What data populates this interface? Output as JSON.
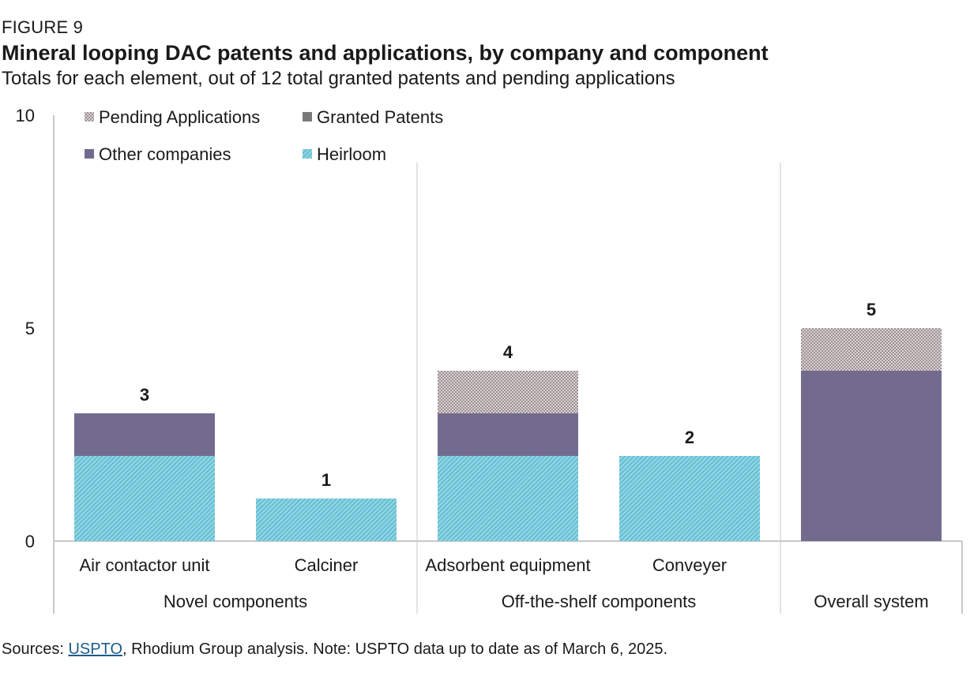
{
  "figure_label": "FIGURE 9",
  "title": "Mineral looping DAC patents and applications, by company and component",
  "subtitle": "Totals for each element, out of 12 total granted patents and pending applications",
  "footer": {
    "prefix": "Sources: ",
    "link_text": "USPTO",
    "suffix": ", Rhodium Group analysis. Note: USPTO data up to date as of March 6, 2025."
  },
  "colors": {
    "heirloom": "#45b0c8",
    "other_companies": "#736b8e",
    "granted_patents": "#7a7a7a",
    "pending_applications": "#a89c9f",
    "axis": "#c8c8c8"
  },
  "chart_data": {
    "type": "bar",
    "stacked": true,
    "categories": [
      "Air contactor unit",
      "Calciner",
      "Adsorbent equipment",
      "Conveyer",
      ""
    ],
    "groups": [
      {
        "label": "Novel components",
        "categories": [
          0,
          1
        ]
      },
      {
        "label": "Off-the-shelf components",
        "categories": [
          2,
          3
        ]
      },
      {
        "label": "Overall system",
        "categories": [
          4
        ]
      }
    ],
    "series": [
      {
        "name": "Heirloom",
        "values": [
          2,
          1,
          2,
          2,
          0
        ],
        "color_key": "heirloom",
        "pattern": "hatch"
      },
      {
        "name": "Other companies",
        "values": [
          1,
          0,
          1,
          0,
          4
        ],
        "color_key": "other_companies",
        "pattern": "solid"
      },
      {
        "name": "Granted Patents",
        "values": [
          0,
          0,
          0,
          0,
          0
        ],
        "color_key": "granted_patents",
        "pattern": "solid"
      },
      {
        "name": "Pending Applications",
        "values": [
          0,
          0,
          1,
          0,
          1
        ],
        "color_key": "pending_applications",
        "pattern": "dots"
      }
    ],
    "totals": [
      "3",
      "1",
      "4",
      "2",
      "5"
    ],
    "legend_order": [
      "Pending Applications",
      "Granted Patents",
      "Other companies",
      "Heirloom"
    ],
    "legend_position": "top-left",
    "y_ticks": [
      "0",
      "5",
      "10"
    ],
    "ylim": [
      0,
      10
    ],
    "xlabel": "",
    "ylabel": "",
    "grid": false
  }
}
